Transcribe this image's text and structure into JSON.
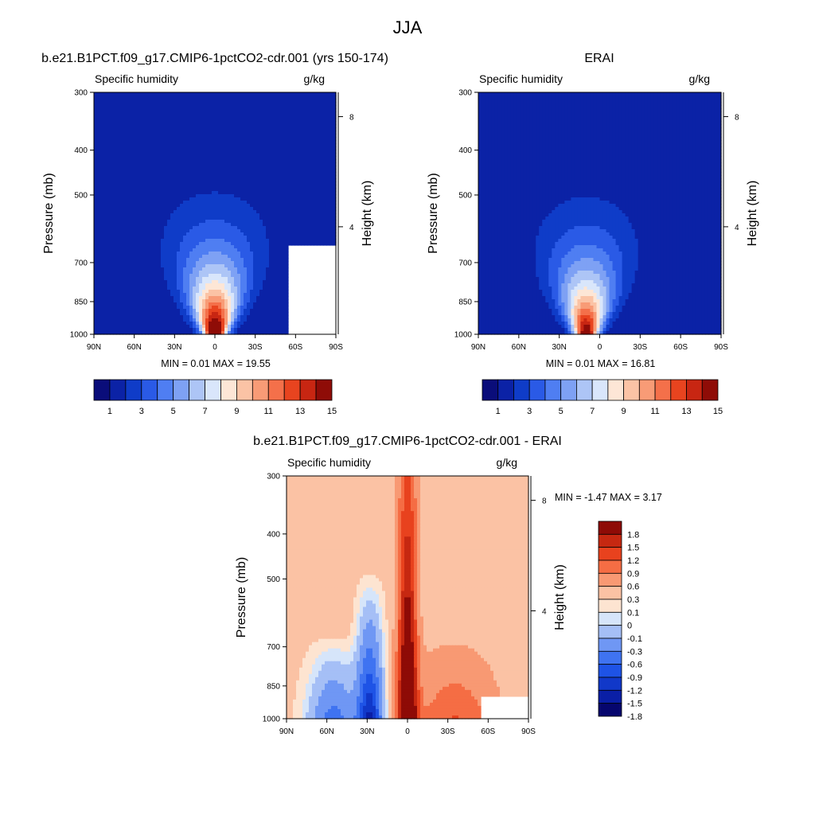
{
  "figure": {
    "title": "JJA"
  },
  "colors": {
    "abs_palette": [
      "#0a0d7a",
      "#0b22a6",
      "#0f3cc8",
      "#2a5ae6",
      "#4f7ef2",
      "#7ea1f4",
      "#adc5f6",
      "#d9e6fb",
      "#fde6d6",
      "#fbc3a5",
      "#f89b76",
      "#f4704a",
      "#e8441f",
      "#c82612",
      "#8f0c07"
    ],
    "diff_palette": [
      "#06066e",
      "#0a1fa6",
      "#1138c9",
      "#1e53e6",
      "#3f73f1",
      "#6f97f4",
      "#a5bff6",
      "#d6e5fa",
      "#fde4d1",
      "#fbc2a4",
      "#f89973",
      "#f56d44",
      "#e8421e",
      "#c62811",
      "#8e0b06"
    ]
  },
  "chart_data": [
    {
      "type": "heatmap",
      "id": "model",
      "title": "b.e21.B1PCT.f09_g17.CMIP6-1pctCO2-cdr.001 (yrs 150-174)",
      "left_label": "Specific humidity",
      "right_label": "g/kg",
      "xlabel": "",
      "ylabel": "Pressure (mb)",
      "y2label": "Height (km)",
      "x_ticks": [
        "90N",
        "60N",
        "30N",
        "0",
        "30S",
        "60S",
        "90S"
      ],
      "x_tick_values": [
        90,
        60,
        30,
        0,
        -30,
        -60,
        -90
      ],
      "y_ticks": [
        "300",
        "400",
        "500",
        "700",
        "850",
        "1000"
      ],
      "y_tick_values": [
        300,
        400,
        500,
        700,
        850,
        1000
      ],
      "y2_ticks": [
        "8",
        "4"
      ],
      "y2_tick_values": [
        8,
        4
      ],
      "xlim": [
        90,
        -90
      ],
      "ylim": [
        300,
        1000
      ],
      "stats": "MIN =   0.01  MAX =  19.55",
      "min": 0.01,
      "max": 19.55,
      "peak_lat": 0,
      "colorbar": {
        "orientation": "horizontal",
        "levels": [
          0,
          1,
          2,
          3,
          4,
          5,
          6,
          7,
          8,
          9,
          10,
          11,
          12,
          13,
          14,
          15
        ],
        "labels": [
          "1",
          "3",
          "5",
          "7",
          "9",
          "11",
          "13",
          "15"
        ]
      }
    },
    {
      "type": "heatmap",
      "id": "obs",
      "title": "ERAI",
      "left_label": "Specific humidity",
      "right_label": "g/kg",
      "xlabel": "",
      "ylabel": "Pressure (mb)",
      "y2label": "Height (km)",
      "x_ticks": [
        "90N",
        "60N",
        "30N",
        "0",
        "30S",
        "60S",
        "90S"
      ],
      "x_tick_values": [
        90,
        60,
        30,
        0,
        -30,
        -60,
        -90
      ],
      "y_ticks": [
        "300",
        "400",
        "500",
        "700",
        "850",
        "1000"
      ],
      "y_tick_values": [
        300,
        400,
        500,
        700,
        850,
        1000
      ],
      "y2_ticks": [
        "8",
        "4"
      ],
      "y2_tick_values": [
        8,
        4
      ],
      "xlim": [
        90,
        -90
      ],
      "ylim": [
        300,
        1000
      ],
      "stats": "MIN =   0.01  MAX =  16.81",
      "min": 0.01,
      "max": 16.81,
      "peak_lat": 10,
      "colorbar": {
        "orientation": "horizontal",
        "levels": [
          0,
          1,
          2,
          3,
          4,
          5,
          6,
          7,
          8,
          9,
          10,
          11,
          12,
          13,
          14,
          15
        ],
        "labels": [
          "1",
          "3",
          "5",
          "7",
          "9",
          "11",
          "13",
          "15"
        ]
      }
    },
    {
      "type": "heatmap",
      "id": "diff",
      "title": "b.e21.B1PCT.f09_g17.CMIP6-1pctCO2-cdr.001 - ERAI",
      "left_label": "Specific humidity",
      "right_label": "g/kg",
      "xlabel": "",
      "ylabel": "Pressure (mb)",
      "y2label": "Height (km)",
      "x_ticks": [
        "90N",
        "60N",
        "30N",
        "0",
        "30S",
        "60S",
        "90S"
      ],
      "x_tick_values": [
        90,
        60,
        30,
        0,
        -30,
        -60,
        -90
      ],
      "y_ticks": [
        "300",
        "400",
        "500",
        "700",
        "850",
        "1000"
      ],
      "y_tick_values": [
        300,
        400,
        500,
        700,
        850,
        1000
      ],
      "y2_ticks": [
        "8",
        "4"
      ],
      "y2_tick_values": [
        8,
        4
      ],
      "xlim": [
        90,
        -90
      ],
      "ylim": [
        300,
        1000
      ],
      "stats": "MIN =  -1.47  MAX =   3.17",
      "min": -1.47,
      "max": 3.17,
      "colorbar": {
        "orientation": "vertical",
        "labels": [
          "1.8",
          "1.5",
          "1.2",
          "0.9",
          "0.6",
          "0.3",
          "0.1",
          "0",
          "-0.1",
          "-0.3",
          "-0.6",
          "-0.9",
          "-1.2",
          "-1.5",
          "-1.8"
        ]
      }
    }
  ]
}
